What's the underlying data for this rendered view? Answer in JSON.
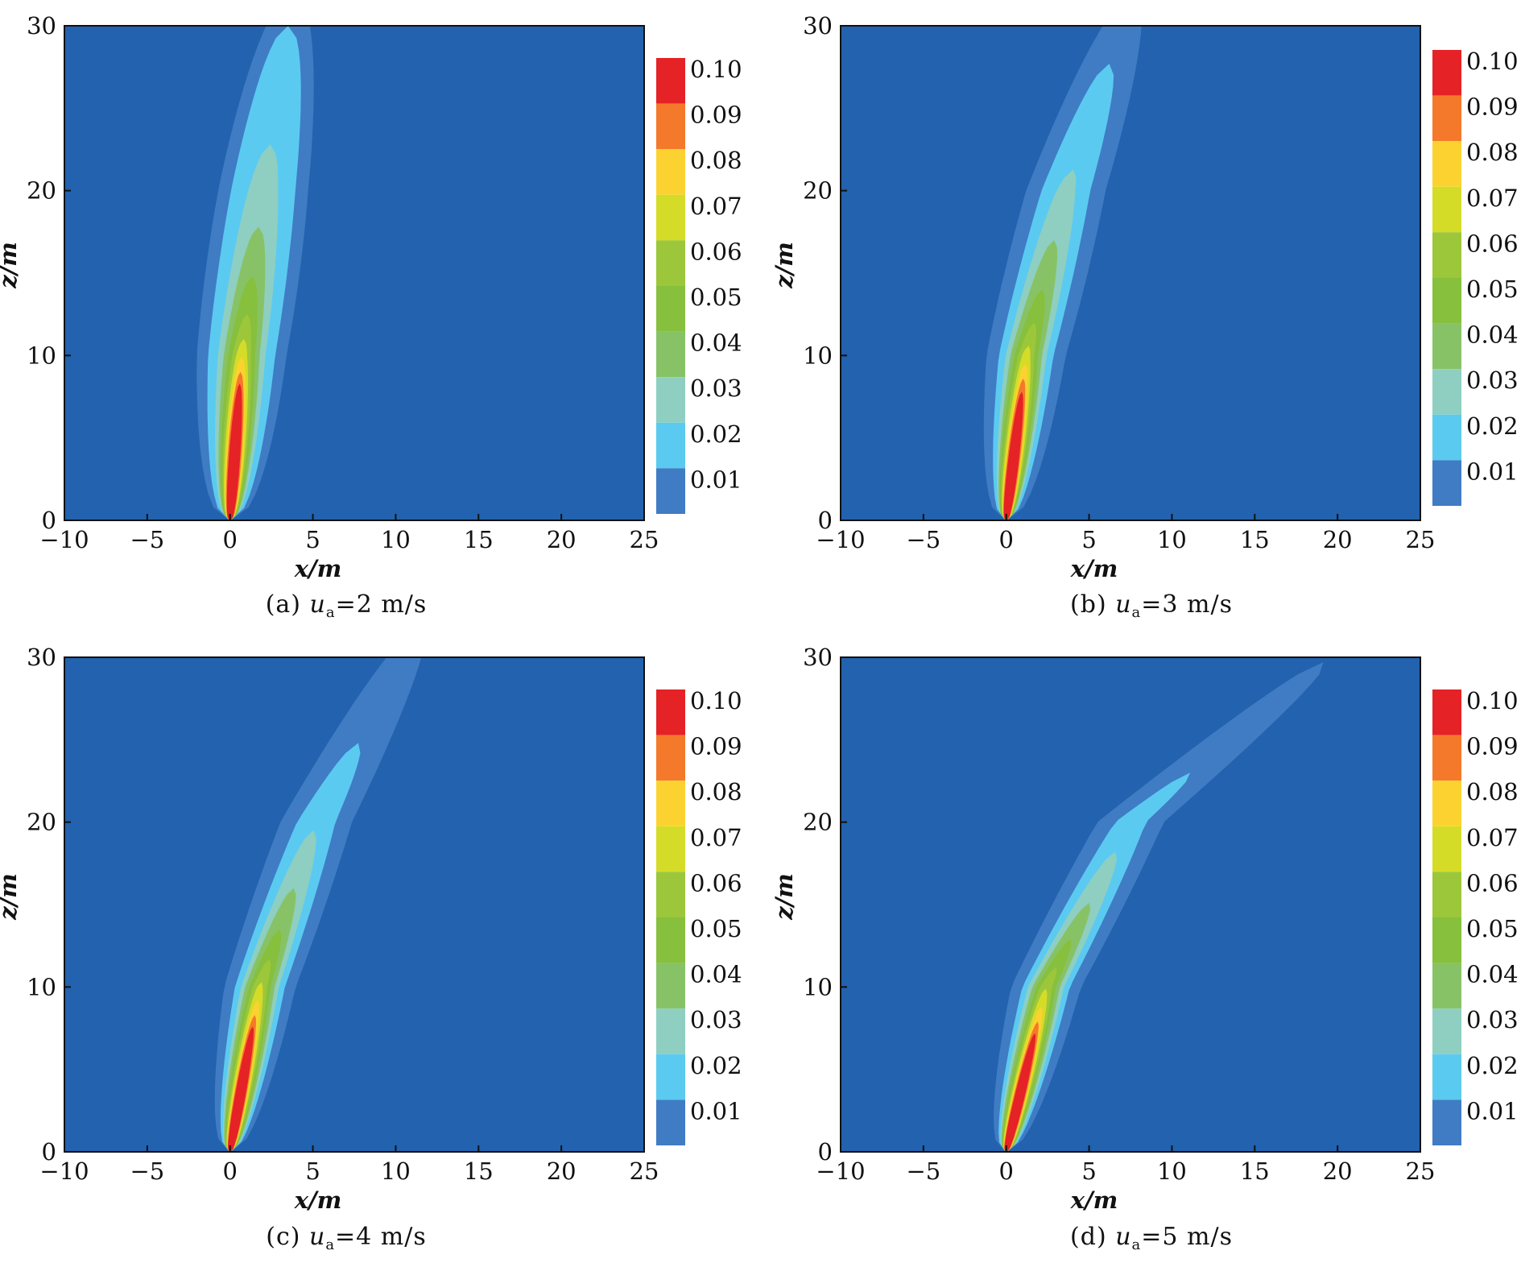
{
  "chart_data": [
    {
      "type": "contour",
      "caption_prefix": "(a) ",
      "caption_var": "u",
      "caption_sub": "a",
      "caption_suffix": "=2 m/s",
      "wind_speed": 2,
      "xlabel": "x/m",
      "ylabel": "z/m",
      "xlim": [
        -10,
        25
      ],
      "ylim": [
        0,
        30
      ],
      "x_ticks": [
        "−10",
        "−5",
        "0",
        "5",
        "10",
        "15",
        "20",
        "25"
      ],
      "y_ticks": [
        "0",
        "10",
        "20",
        "30"
      ],
      "levels": [
        "0.01",
        "0.02",
        "0.03",
        "0.04",
        "0.05",
        "0.06",
        "0.07",
        "0.08",
        "0.09",
        "0.10"
      ],
      "plume_axis": [
        [
          0,
          0
        ],
        [
          0.7,
          10
        ],
        [
          2.0,
          20
        ],
        [
          3.5,
          30
        ]
      ],
      "contours": [
        {
          "level": 0.01,
          "centerline_lean": 1.0,
          "top": 32,
          "half_width": 3.4
        },
        {
          "level": 0.02,
          "centerline_lean": 1.0,
          "top": 30,
          "half_width": 2.5
        },
        {
          "level": 0.03,
          "centerline_lean": 1.0,
          "top": 22.8,
          "half_width": 1.7
        },
        {
          "level": 0.04,
          "centerline_lean": 1.0,
          "top": 17.8,
          "half_width": 1.3
        },
        {
          "level": 0.05,
          "centerline_lean": 1.0,
          "top": 14.8,
          "half_width": 1.05
        },
        {
          "level": 0.06,
          "centerline_lean": 1.0,
          "top": 12.5,
          "half_width": 0.85
        },
        {
          "level": 0.07,
          "centerline_lean": 1.0,
          "top": 11.0,
          "half_width": 0.7
        },
        {
          "level": 0.08,
          "centerline_lean": 1.0,
          "top": 9.9,
          "half_width": 0.58
        },
        {
          "level": 0.09,
          "centerline_lean": 1.0,
          "top": 9.0,
          "half_width": 0.47
        },
        {
          "level": 0.1,
          "centerline_lean": 1.0,
          "top": 8.3,
          "half_width": 0.38
        }
      ]
    },
    {
      "type": "contour",
      "caption_prefix": "(b) ",
      "caption_var": "u",
      "caption_sub": "a",
      "caption_suffix": "=3 m/s",
      "wind_speed": 3,
      "xlabel": "x/m",
      "ylabel": "z/m",
      "xlim": [
        -10,
        25
      ],
      "ylim": [
        0,
        30
      ],
      "x_ticks": [
        "−10",
        "−5",
        "0",
        "5",
        "10",
        "15",
        "20",
        "25"
      ],
      "y_ticks": [
        "0",
        "10",
        "20",
        "30"
      ],
      "levels": [
        "0.01",
        "0.02",
        "0.03",
        "0.04",
        "0.05",
        "0.06",
        "0.07",
        "0.08",
        "0.09",
        "0.10"
      ],
      "contours": [
        {
          "level": 0.01,
          "top": 32,
          "half_width": 3.0
        },
        {
          "level": 0.02,
          "top": 27.7,
          "half_width": 2.0
        },
        {
          "level": 0.03,
          "top": 21.3,
          "half_width": 1.45
        },
        {
          "level": 0.04,
          "top": 17.0,
          "half_width": 1.15
        },
        {
          "level": 0.05,
          "top": 14.0,
          "half_width": 0.95
        },
        {
          "level": 0.06,
          "top": 12.0,
          "half_width": 0.78
        },
        {
          "level": 0.07,
          "top": 10.6,
          "half_width": 0.64
        },
        {
          "level": 0.08,
          "top": 9.5,
          "half_width": 0.53
        },
        {
          "level": 0.09,
          "top": 8.6,
          "half_width": 0.44
        },
        {
          "level": 0.1,
          "top": 7.8,
          "half_width": 0.36
        }
      ],
      "plume_axis": [
        [
          0,
          0
        ],
        [
          1.2,
          10
        ],
        [
          3.6,
          20
        ],
        [
          7.0,
          30
        ]
      ]
    },
    {
      "type": "contour",
      "caption_prefix": "(c) ",
      "caption_var": "u",
      "caption_sub": "a",
      "caption_suffix": "=4 m/s",
      "wind_speed": 4,
      "xlabel": "x/m",
      "ylabel": "z/m",
      "xlim": [
        -10,
        25
      ],
      "ylim": [
        0,
        30
      ],
      "x_ticks": [
        "−10",
        "−5",
        "0",
        "5",
        "10",
        "15",
        "20",
        "25"
      ],
      "y_ticks": [
        "0",
        "10",
        "20",
        "30"
      ],
      "levels": [
        "0.01",
        "0.02",
        "0.03",
        "0.04",
        "0.05",
        "0.06",
        "0.07",
        "0.08",
        "0.09",
        "0.10"
      ],
      "contours": [
        {
          "level": 0.01,
          "top": 32,
          "half_width": 2.7
        },
        {
          "level": 0.02,
          "top": 24.8,
          "half_width": 1.8
        },
        {
          "level": 0.03,
          "top": 19.5,
          "half_width": 1.35
        },
        {
          "level": 0.04,
          "top": 16.0,
          "half_width": 1.1
        },
        {
          "level": 0.05,
          "top": 13.5,
          "half_width": 0.9
        },
        {
          "level": 0.06,
          "top": 11.7,
          "half_width": 0.74
        },
        {
          "level": 0.07,
          "top": 10.3,
          "half_width": 0.61
        },
        {
          "level": 0.08,
          "top": 9.2,
          "half_width": 0.5
        },
        {
          "level": 0.09,
          "top": 8.3,
          "half_width": 0.42
        },
        {
          "level": 0.1,
          "top": 7.6,
          "half_width": 0.35
        }
      ],
      "plume_axis": [
        [
          0,
          0
        ],
        [
          1.8,
          10
        ],
        [
          5.2,
          20
        ],
        [
          10.5,
          30
        ]
      ]
    },
    {
      "type": "contour",
      "caption_prefix": "(d) ",
      "caption_var": "u",
      "caption_sub": "a",
      "caption_suffix": "=5 m/s",
      "wind_speed": 5,
      "xlabel": "x/m",
      "ylabel": "z/m",
      "xlim": [
        -10,
        25
      ],
      "ylim": [
        0,
        30
      ],
      "x_ticks": [
        "−10",
        "−5",
        "0",
        "5",
        "10",
        "15",
        "20",
        "25"
      ],
      "y_ticks": [
        "0",
        "10",
        "20",
        "30"
      ],
      "levels": [
        "0.01",
        "0.02",
        "0.03",
        "0.04",
        "0.05",
        "0.06",
        "0.07",
        "0.08",
        "0.09",
        "0.10"
      ],
      "contours": [
        {
          "level": 0.01,
          "top": 29.7,
          "half_width": 2.6
        },
        {
          "level": 0.02,
          "top": 23.0,
          "half_width": 1.7
        },
        {
          "level": 0.03,
          "top": 18.2,
          "half_width": 1.3
        },
        {
          "level": 0.04,
          "top": 15.1,
          "half_width": 1.05
        },
        {
          "level": 0.05,
          "top": 12.9,
          "half_width": 0.86
        },
        {
          "level": 0.06,
          "top": 11.2,
          "half_width": 0.71
        },
        {
          "level": 0.07,
          "top": 9.9,
          "half_width": 0.59
        },
        {
          "level": 0.08,
          "top": 8.8,
          "half_width": 0.49
        },
        {
          "level": 0.09,
          "top": 7.9,
          "half_width": 0.41
        },
        {
          "level": 0.1,
          "top": 7.2,
          "half_width": 0.34
        }
      ],
      "plume_axis": [
        [
          0,
          0
        ],
        [
          2.4,
          10
        ],
        [
          7.5,
          20
        ],
        [
          19.5,
          30
        ]
      ]
    }
  ],
  "colors": {
    "background": "#2262ae",
    "levels": [
      "#2262ae",
      "#3f7cc4",
      "#5bcaf1",
      "#8ecfc1",
      "#88c266",
      "#86c03d",
      "#9cc73b",
      "#d5dc28",
      "#fcd230",
      "#f4792a",
      "#e52225"
    ],
    "colorbar_fill": [
      "#1c5ca8",
      "#3f7cc4",
      "#5bcaf1",
      "#8ecfc1",
      "#88c266",
      "#86c03d",
      "#9cc73b",
      "#d5dc28",
      "#fcd230",
      "#f4792a",
      "#e52225"
    ]
  }
}
